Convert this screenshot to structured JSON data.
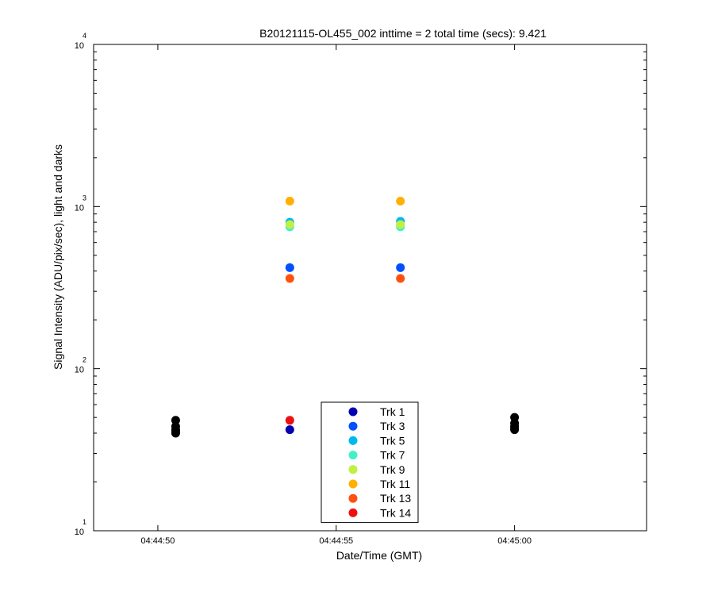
{
  "chart_data": {
    "type": "scatter",
    "title": "B20121115-OL455_002 inttime = 2 total time (secs): 9.421",
    "xlabel": "Date/Time (GMT)",
    "ylabel": "Signal Intensity (ADU/pix/sec), light and darks",
    "y_scale": "log",
    "ylim": [
      10,
      10000
    ],
    "xlim": [
      "04:44:48.2",
      "04:45:03.7"
    ],
    "x_ticks": [
      "04:44:50",
      "04:44:55",
      "04:45:00"
    ],
    "y_ticks": [
      {
        "value": 10,
        "base": "10",
        "exp": "1"
      },
      {
        "value": 100,
        "base": "10",
        "exp": "2"
      },
      {
        "value": 1000,
        "base": "10",
        "exp": "3"
      },
      {
        "value": 10000,
        "base": "10",
        "exp": "4"
      }
    ],
    "grid": false,
    "legend_position": "bottom-center",
    "series": [
      {
        "name": "Trk 1",
        "color": "#0000b0",
        "points": [
          {
            "x": "04:44:53.7",
            "y": 42
          },
          {
            "x": "04:44:56.8",
            "y": 42
          }
        ]
      },
      {
        "name": "Trk 3",
        "color": "#0050ff",
        "points": [
          {
            "x": "04:44:53.7",
            "y": 420
          },
          {
            "x": "04:44:56.8",
            "y": 420
          }
        ]
      },
      {
        "name": "Trk 5",
        "color": "#00b8f0",
        "points": [
          {
            "x": "04:44:53.7",
            "y": 800
          },
          {
            "x": "04:44:56.8",
            "y": 810
          }
        ]
      },
      {
        "name": "Trk 7",
        "color": "#40f0c8",
        "points": [
          {
            "x": "04:44:53.7",
            "y": 750
          },
          {
            "x": "04:44:56.8",
            "y": 750
          }
        ]
      },
      {
        "name": "Trk 9",
        "color": "#c0f040",
        "points": [
          {
            "x": "04:44:53.7",
            "y": 775
          },
          {
            "x": "04:44:56.8",
            "y": 775
          }
        ]
      },
      {
        "name": "Trk 11",
        "color": "#ffb000",
        "points": [
          {
            "x": "04:44:53.7",
            "y": 1080
          },
          {
            "x": "04:44:56.8",
            "y": 1080
          }
        ]
      },
      {
        "name": "Trk 13",
        "color": "#ff5010",
        "points": [
          {
            "x": "04:44:53.7",
            "y": 360
          },
          {
            "x": "04:44:56.8",
            "y": 360
          }
        ]
      },
      {
        "name": "Trk 14",
        "color": "#ee1010",
        "points": [
          {
            "x": "04:44:53.7",
            "y": 48
          },
          {
            "x": "04:44:56.8",
            "y": 48
          }
        ]
      }
    ],
    "darks": {
      "color": "#000000",
      "points": [
        {
          "x": "04:44:50.5",
          "y": 48
        },
        {
          "x": "04:44:50.5",
          "y": 44
        },
        {
          "x": "04:44:50.5",
          "y": 42
        },
        {
          "x": "04:44:50.5",
          "y": 41
        },
        {
          "x": "04:44:50.5",
          "y": 40
        },
        {
          "x": "04:45:00.0",
          "y": 50
        },
        {
          "x": "04:45:00.0",
          "y": 46
        },
        {
          "x": "04:45:00.0",
          "y": 44
        },
        {
          "x": "04:45:00.0",
          "y": 43
        },
        {
          "x": "04:45:00.0",
          "y": 42
        }
      ]
    }
  }
}
